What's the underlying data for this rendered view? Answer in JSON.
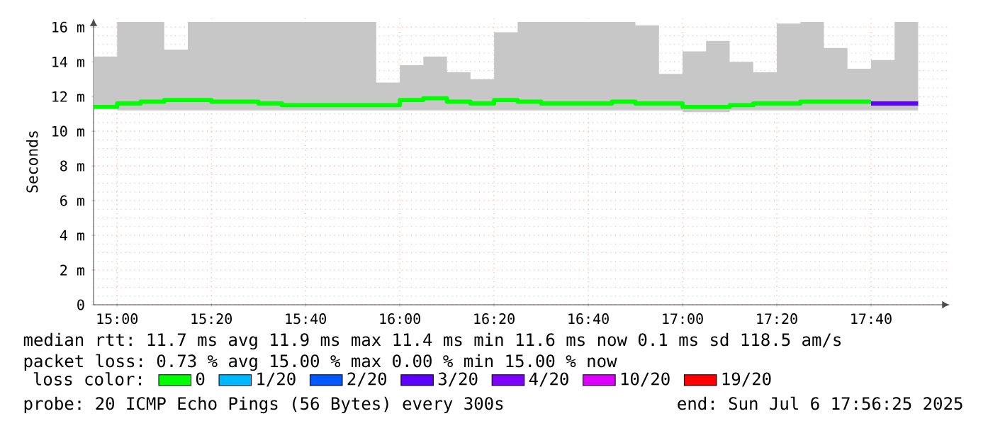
{
  "chart_data": {
    "type": "step",
    "ylabel": "Seconds",
    "legend_title": "loss color:",
    "legend": "bottom",
    "grid": true,
    "x": [
      14.9167,
      15,
      15.0833,
      15.1667,
      15.25,
      15.3333,
      15.4167,
      15.5,
      15.5833,
      15.6667,
      15.75,
      15.8333,
      15.9167,
      16,
      16.0833,
      16.1667,
      16.25,
      16.3333,
      16.4167,
      16.5,
      16.5833,
      16.6667,
      16.75,
      16.8333,
      16.9167,
      17,
      17.0833,
      17.1667,
      17.25,
      17.3333,
      17.4167,
      17.5,
      17.5833,
      17.6667,
      17.75,
      17.8333
    ],
    "xlim": [
      14.9167,
      17.945
    ],
    "xticks": [
      {
        "value": 15,
        "label": "15:00"
      },
      {
        "value": 15.3333,
        "label": "15:20"
      },
      {
        "value": 15.6667,
        "label": "15:40"
      },
      {
        "value": 16,
        "label": "16:00"
      },
      {
        "value": 16.3333,
        "label": "16:20"
      },
      {
        "value": 16.6667,
        "label": "16:40"
      },
      {
        "value": 17,
        "label": "17:00"
      },
      {
        "value": 17.3333,
        "label": "17:20"
      },
      {
        "value": 17.6667,
        "label": "17:40"
      }
    ],
    "ylim": [
      0,
      16.5
    ],
    "yticks": [
      0,
      {
        "value": 2,
        "label": "2 m"
      },
      {
        "value": 4,
        "label": "4 m"
      },
      {
        "value": 6,
        "label": "6 m"
      },
      {
        "value": 8,
        "label": "8 m"
      },
      {
        "value": 10,
        "label": "10 m"
      },
      {
        "value": 12,
        "label": "12 m"
      },
      {
        "value": 14,
        "label": "14 m"
      },
      {
        "value": 16,
        "label": "16 m"
      }
    ],
    "series": [
      {
        "name": "0",
        "color": "#00ff00",
        "values": [
          11.4,
          11.6,
          11.7,
          11.8,
          11.8,
          11.7,
          11.7,
          11.6,
          11.5,
          11.5,
          11.5,
          11.5,
          11.5,
          11.8,
          11.9,
          11.7,
          11.6,
          11.8,
          11.7,
          11.6,
          11.6,
          11.6,
          11.7,
          11.6,
          11.6,
          11.4,
          11.4,
          11.5,
          11.6,
          11.6,
          11.7,
          11.7,
          11.7,
          11.7,
          null,
          null
        ],
        "lower": [
          11.3,
          11.2,
          11.2,
          11.2,
          11.2,
          11.2,
          11.2,
          11.2,
          11.2,
          11.2,
          11.2,
          11.2,
          11.2,
          11.2,
          11.2,
          11.2,
          11.2,
          11.2,
          11.2,
          11.2,
          11.2,
          11.2,
          11.2,
          11.2,
          11.2,
          11.1,
          11.1,
          11.2,
          11.2,
          11.2,
          11.2,
          11.2,
          11.2,
          11.2,
          null,
          null
        ],
        "upper": [
          14.3,
          16.3,
          16.3,
          14.7,
          16.3,
          16.3,
          16.3,
          16.3,
          16.3,
          16.3,
          16.3,
          16.3,
          12.8,
          13.8,
          14.3,
          13.4,
          13.0,
          15.7,
          16.3,
          16.3,
          16.3,
          16.3,
          16.3,
          16.1,
          13.3,
          14.6,
          15.2,
          14.0,
          13.4,
          16.2,
          16.3,
          14.8,
          13.6,
          13.6,
          null,
          null
        ]
      },
      {
        "name": "1/20",
        "color": "#00b8ff",
        "values": [
          null,
          null,
          null,
          null,
          null,
          null,
          null,
          null,
          null,
          null,
          null,
          null,
          null,
          null,
          null,
          null,
          null,
          null,
          null,
          null,
          null,
          null,
          null,
          null,
          null,
          null,
          null,
          null,
          null,
          null,
          null,
          null,
          null,
          null,
          null,
          null
        ]
      },
      {
        "name": "2/20",
        "color": "#0059ff",
        "values": [
          null,
          null,
          null,
          null,
          null,
          null,
          null,
          null,
          null,
          null,
          null,
          null,
          null,
          null,
          null,
          null,
          null,
          null,
          null,
          null,
          null,
          null,
          null,
          null,
          null,
          null,
          null,
          null,
          null,
          null,
          null,
          null,
          null,
          null,
          null,
          null
        ]
      },
      {
        "name": "3/20",
        "color": "#5e00ff",
        "values": [
          null,
          null,
          null,
          null,
          null,
          null,
          null,
          null,
          null,
          null,
          null,
          null,
          null,
          null,
          null,
          null,
          null,
          null,
          null,
          null,
          null,
          null,
          null,
          null,
          null,
          null,
          null,
          null,
          null,
          null,
          null,
          null,
          null,
          11.6,
          11.6,
          11.6
        ],
        "lower": [
          null,
          null,
          null,
          null,
          null,
          null,
          null,
          null,
          null,
          null,
          null,
          null,
          null,
          null,
          null,
          null,
          null,
          null,
          null,
          null,
          null,
          null,
          null,
          null,
          null,
          null,
          null,
          null,
          null,
          null,
          null,
          null,
          null,
          11.2,
          11.2,
          11.2
        ],
        "upper": [
          null,
          null,
          null,
          null,
          null,
          null,
          null,
          null,
          null,
          null,
          null,
          null,
          null,
          null,
          null,
          null,
          null,
          null,
          null,
          null,
          null,
          null,
          null,
          null,
          null,
          null,
          null,
          null,
          null,
          null,
          null,
          null,
          null,
          14.1,
          16.3,
          16.3
        ]
      },
      {
        "name": "4/20",
        "color": "#7e00ff",
        "values": [
          null,
          null,
          null,
          null,
          null,
          null,
          null,
          null,
          null,
          null,
          null,
          null,
          null,
          null,
          null,
          null,
          null,
          null,
          null,
          null,
          null,
          null,
          null,
          null,
          null,
          null,
          null,
          null,
          null,
          null,
          null,
          null,
          null,
          null,
          null,
          null
        ]
      },
      {
        "name": "10/20",
        "color": "#dd00ff",
        "values": [
          null,
          null,
          null,
          null,
          null,
          null,
          null,
          null,
          null,
          null,
          null,
          null,
          null,
          null,
          null,
          null,
          null,
          null,
          null,
          null,
          null,
          null,
          null,
          null,
          null,
          null,
          null,
          null,
          null,
          null,
          null,
          null,
          null,
          null,
          null,
          null
        ]
      },
      {
        "name": "19/20",
        "color": "#ff0000",
        "values": [
          null,
          null,
          null,
          null,
          null,
          null,
          null,
          null,
          null,
          null,
          null,
          null,
          null,
          null,
          null,
          null,
          null,
          null,
          null,
          null,
          null,
          null,
          null,
          null,
          null,
          null,
          null,
          null,
          null,
          null,
          null,
          null,
          null,
          null,
          null,
          null
        ]
      }
    ],
    "annotations": [
      "median rtt:  11.7 ms avg  11.9 ms max  11.4 ms min  11.6 ms now  0.1 ms sd  118.5   am/s",
      "packet loss: 0.73 % avg  15.00 % max  0.00 % min  15.00 % now",
      "probe:       20 ICMP Echo Pings (56 Bytes) every 300s",
      "end: Sun Jul  6 17:56:25 2025"
    ]
  }
}
